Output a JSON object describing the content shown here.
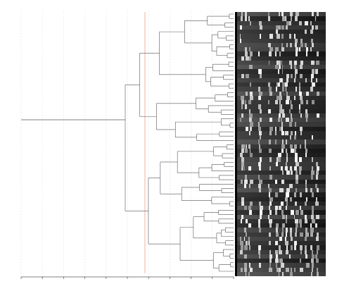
{
  "figure": {
    "kind": "dendrogram-with-gel-bands",
    "cutoff_line_color": "#e08060",
    "tree_line_color": "#555555",
    "axis_color": "#555555",
    "gridline_color": "#dddddd",
    "gel_background": "#1d1d1d",
    "lane_count": 60,
    "axis_tick_count": 11,
    "axis_tick_labels_visible": false
  }
}
